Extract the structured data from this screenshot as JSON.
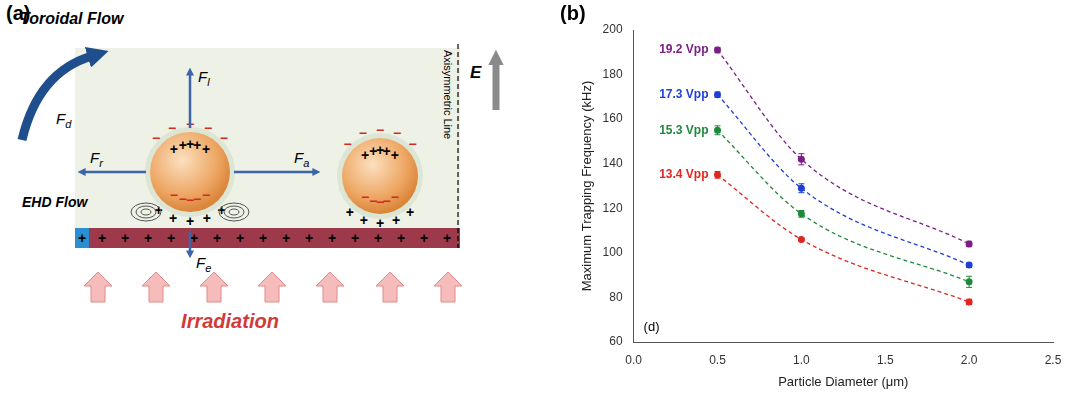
{
  "figure": {
    "panel_labels": [
      "(a)",
      "(b)"
    ]
  },
  "diagram": {
    "flows": {
      "toroidal": "Toroidal Flow",
      "ehd": "EHD Flow"
    },
    "forces": [
      {
        "symbol": "F",
        "subscript": "d"
      },
      {
        "symbol": "F",
        "subscript": "l"
      },
      {
        "symbol": "F",
        "subscript": "r"
      },
      {
        "symbol": "F",
        "subscript": "a"
      },
      {
        "symbol": "F",
        "subscript": "e"
      }
    ],
    "field": "E",
    "axis_line": "Axisymmetric Line",
    "source": "Irradiation",
    "charges": {
      "positive": "+",
      "negative": "−"
    }
  },
  "chart_data": {
    "type": "line",
    "x_label": "Particle Diameter (μm)",
    "y_label": "Maximum Trapping Frequency (kHz)",
    "annotations": [
      "(d)"
    ],
    "x": [
      0.5,
      1.0,
      2.0
    ],
    "series": [
      {
        "name": "19.2 Vpp",
        "color": "#7b1f86",
        "values": [
          191,
          142,
          104
        ],
        "errors": [
          1.2,
          2.5,
          1.2
        ],
        "marker": "circle",
        "line_style": "dashed"
      },
      {
        "name": "17.3 Vpp",
        "color": "#1f3fd8",
        "values": [
          171,
          129,
          94.5
        ],
        "errors": [
          1.2,
          2.0,
          1.0
        ],
        "marker": "circle",
        "line_style": "dashed"
      },
      {
        "name": "15.3 Vpp",
        "color": "#1f8a3a",
        "values": [
          155,
          117.5,
          87
        ],
        "errors": [
          2.0,
          1.5,
          2.5
        ],
        "marker": "circle",
        "line_style": "dashed"
      },
      {
        "name": "13.4 Vpp",
        "color": "#e0261f",
        "values": [
          135,
          106,
          78
        ],
        "errors": [
          1.5,
          0.5,
          1.2
        ],
        "marker": "circle",
        "line_style": "dashed"
      }
    ],
    "xlim": [
      0,
      2.5
    ],
    "xticks": [
      {
        "value": 0,
        "label": "0.0"
      },
      0.5,
      {
        "value": 1,
        "label": "1.0"
      },
      1.5,
      {
        "value": 2,
        "label": "2.0"
      },
      2.5
    ],
    "ylim": [
      60,
      200
    ],
    "yticks": [
      60,
      80,
      100,
      120,
      140,
      160,
      180,
      200
    ],
    "grid": false
  }
}
